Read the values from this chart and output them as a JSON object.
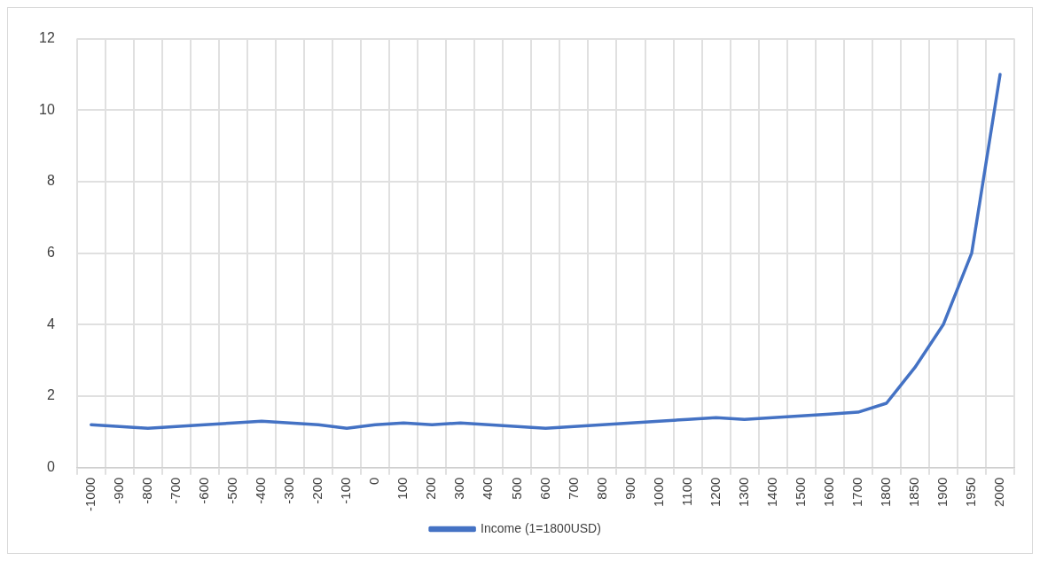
{
  "chart_data": {
    "type": "line",
    "categories": [
      "-1000",
      "-900",
      "-800",
      "-700",
      "-600",
      "-500",
      "-400",
      "-300",
      "-200",
      "-100",
      "0",
      "100",
      "200",
      "300",
      "400",
      "500",
      "600",
      "700",
      "800",
      "900",
      "1000",
      "1100",
      "1200",
      "1300",
      "1400",
      "1500",
      "1600",
      "1700",
      "1800",
      "1850",
      "1900",
      "1950",
      "2000"
    ],
    "series": [
      {
        "name": "Income (1=1800USD)",
        "color": "#4472c4",
        "values": [
          1.2,
          1.15,
          1.1,
          1.15,
          1.2,
          1.25,
          1.3,
          1.25,
          1.2,
          1.1,
          1.2,
          1.25,
          1.2,
          1.25,
          1.2,
          1.15,
          1.1,
          1.15,
          1.2,
          1.25,
          1.3,
          1.35,
          1.4,
          1.35,
          1.4,
          1.45,
          1.5,
          1.55,
          1.8,
          2.8,
          4,
          6,
          11
        ]
      }
    ],
    "ylim": [
      0,
      12
    ],
    "yticks": [
      0,
      2,
      4,
      6,
      8,
      10,
      12
    ],
    "grid": true,
    "legend": "bottom",
    "marker": "none",
    "line_style": "solid"
  }
}
